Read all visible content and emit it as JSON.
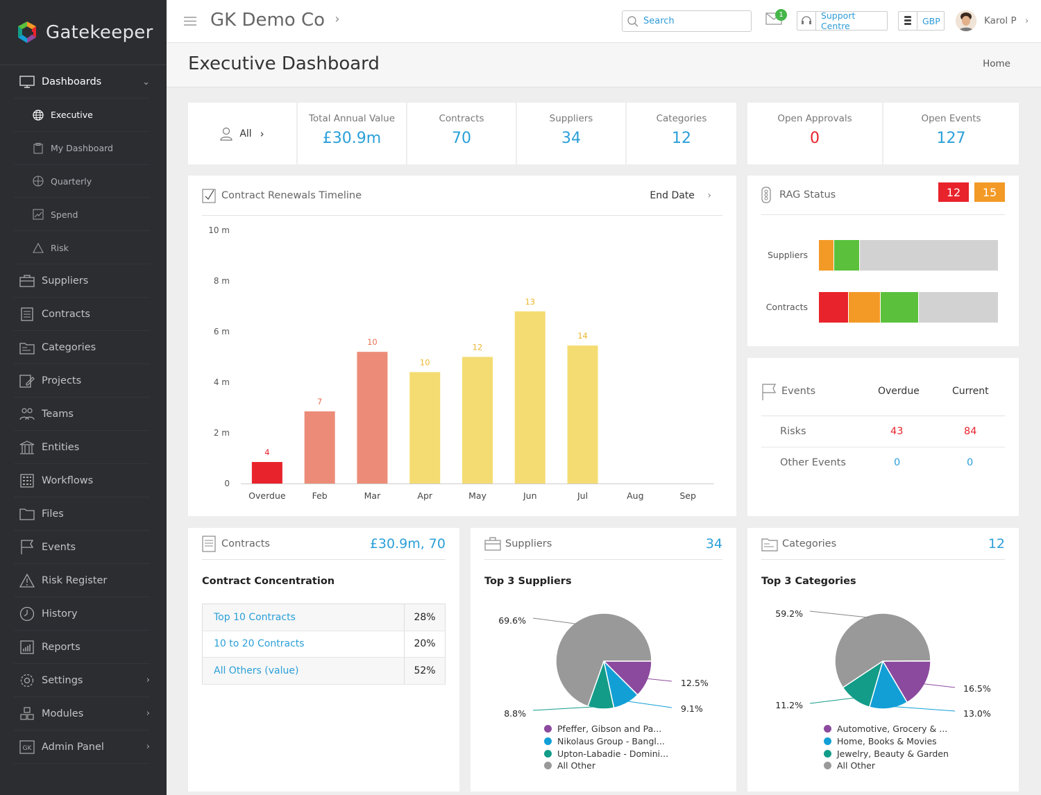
{
  "brand": {
    "name": "Gatekeeper"
  },
  "sidebar": {
    "dashboards": {
      "label": "Dashboards"
    },
    "sub": [
      {
        "label": "Executive",
        "icon": "globe-icon"
      },
      {
        "label": "My Dashboard",
        "icon": "clipboard-icon"
      },
      {
        "label": "Quarterly",
        "icon": "globe-icon"
      },
      {
        "label": "Spend",
        "icon": "chart-icon"
      },
      {
        "label": "Risk",
        "icon": "warning-icon"
      }
    ],
    "items": [
      {
        "label": "Suppliers",
        "icon": "briefcase-icon"
      },
      {
        "label": "Contracts",
        "icon": "document-icon"
      },
      {
        "label": "Categories",
        "icon": "folder-icon"
      },
      {
        "label": "Projects",
        "icon": "pencil-icon"
      },
      {
        "label": "Teams",
        "icon": "people-icon"
      },
      {
        "label": "Entities",
        "icon": "bank-icon"
      },
      {
        "label": "Workflows",
        "icon": "grid-icon"
      },
      {
        "label": "Files",
        "icon": "folder-icon"
      },
      {
        "label": "Events",
        "icon": "flag-icon"
      },
      {
        "label": "Risk Register",
        "icon": "warning-icon"
      },
      {
        "label": "History",
        "icon": "clock-icon"
      },
      {
        "label": "Reports",
        "icon": "bar-chart-icon"
      },
      {
        "label": "Settings",
        "icon": "gear-icon"
      },
      {
        "label": "Modules",
        "icon": "cubes-icon"
      },
      {
        "label": "Admin Panel",
        "icon": "gk-icon"
      }
    ]
  },
  "topbar": {
    "company": "GK Demo Co",
    "search_placeholder": "Search",
    "mail_badge": "1",
    "support": "Support Centre",
    "currency": "GBP",
    "user": "Karol P"
  },
  "page": {
    "title": "Executive Dashboard",
    "breadcrumb": "Home"
  },
  "filter": {
    "label": "All"
  },
  "stats": [
    {
      "label": "Total Annual Value",
      "value": "£30.9m"
    },
    {
      "label": "Contracts",
      "value": "70"
    },
    {
      "label": "Suppliers",
      "value": "34"
    },
    {
      "label": "Categories",
      "value": "12"
    }
  ],
  "approvals": {
    "label": "Open Approvals",
    "value": "0"
  },
  "open_events": {
    "label": "Open Events",
    "value": "127"
  },
  "renewals": {
    "title": "Contract Renewals Timeline",
    "sort": "End Date"
  },
  "chart_data": {
    "type": "bar",
    "categories": [
      "Overdue",
      "Feb",
      "Mar",
      "Apr",
      "May",
      "Jun",
      "Jul",
      "Aug",
      "Sep"
    ],
    "values": [
      0.85,
      2.85,
      5.2,
      4.4,
      5.0,
      6.8,
      5.45,
      0,
      0
    ],
    "data_labels": [
      "4",
      "7",
      "10",
      "10",
      "12",
      "13",
      "14",
      "",
      ""
    ],
    "colors": [
      "#e8232b",
      "#ec8c78",
      "#ec8c78",
      "#f4dc72",
      "#f4dc72",
      "#f4dc72",
      "#f4dc72",
      "#f4dc72",
      "#f4dc72"
    ],
    "label_colors": [
      "#e8232b",
      "#e86f50",
      "#e86f50",
      "#ecb72f",
      "#ecb72f",
      "#ecb72f",
      "#ecb72f",
      "#ecb72f",
      "#ecb72f"
    ],
    "yticks": [
      "0",
      "2 m",
      "4 m",
      "6 m",
      "8 m",
      "10 m"
    ],
    "ylim": [
      0,
      10
    ]
  },
  "rag": {
    "title": "RAG Status",
    "red": "12",
    "amber": "15",
    "rows": [
      {
        "label": "Suppliers",
        "segments": [
          {
            "color": "#f39a26",
            "v": 0.083
          },
          {
            "color": "#5bc13d",
            "v": 0.14
          },
          {
            "color": "#d2d2d2",
            "v": 0.777
          }
        ]
      },
      {
        "label": "Contracts",
        "segments": [
          {
            "color": "#e8232b",
            "v": 0.166
          },
          {
            "color": "#f39a26",
            "v": 0.175
          },
          {
            "color": "#5bc13d",
            "v": 0.21
          },
          {
            "color": "#d2d2d2",
            "v": 0.449
          }
        ]
      }
    ]
  },
  "events": {
    "title": "Events",
    "col_overdue": "Overdue",
    "col_current": "Current",
    "rows": [
      {
        "label": "Risks",
        "overdue": "43",
        "current": "84",
        "color": "#e8232b"
      },
      {
        "label": "Other Events",
        "overdue": "0",
        "current": "0",
        "color": "#2a9fd8"
      }
    ]
  },
  "contracts_card": {
    "title": "Contracts",
    "value": "£30.9m, 70",
    "subtitle": "Contract Concentration",
    "rows": [
      {
        "name": "Top 10 Contracts",
        "pct": "28%"
      },
      {
        "name": "10 to 20 Contracts",
        "pct": "20%"
      },
      {
        "name": "All Others (value)",
        "pct": "52%"
      }
    ]
  },
  "suppliers_card": {
    "title": "Suppliers",
    "value": "34",
    "subtitle": "Top 3 Suppliers",
    "slices": [
      {
        "name": "Pfeffer, Gibson and Pa...",
        "pct": 12.5,
        "label": "12.5%",
        "color": "#8c4a9e"
      },
      {
        "name": "Nikolaus Group - Bangl...",
        "pct": 9.1,
        "label": "9.1%",
        "color": "#129fd6"
      },
      {
        "name": "Upton-Labadie - Domini...",
        "pct": 8.8,
        "label": "8.8%",
        "color": "#139c88"
      },
      {
        "name": "All Other",
        "pct": 69.6,
        "label": "69.6%",
        "color": "#999999"
      }
    ]
  },
  "categories_card": {
    "title": "Categories",
    "value": "12",
    "subtitle": "Top 3 Categories",
    "slices": [
      {
        "name": "Automotive, Grocery & ...",
        "pct": 16.5,
        "label": "16.5%",
        "color": "#8c4a9e"
      },
      {
        "name": "Home, Books & Movies",
        "pct": 13.0,
        "label": "13.0%",
        "color": "#129fd6"
      },
      {
        "name": "Jewelry, Beauty & Garden",
        "pct": 11.2,
        "label": "11.2%",
        "color": "#139c88"
      },
      {
        "name": "All Other",
        "pct": 59.2,
        "label": "59.2%",
        "color": "#999999"
      }
    ]
  }
}
